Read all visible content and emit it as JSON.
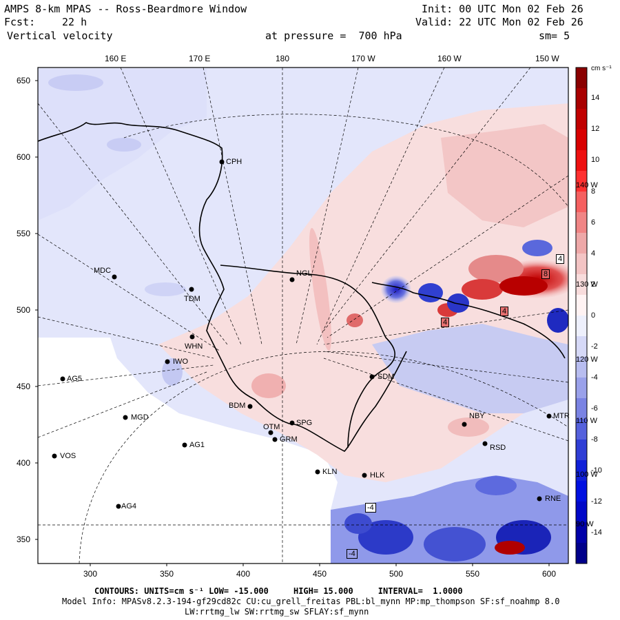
{
  "header": {
    "title": "AMPS 8-km MPAS -- Ross-Beardmore Window",
    "fcst_label": "Fcst:",
    "fcst_value": "22 h",
    "variable": "Vertical velocity",
    "init": "Init: 00 UTC Mon 02 Feb 26",
    "valid": "Valid: 22 UTC Mon 02 Feb 26",
    "pressure": "at pressure =  700 hPa",
    "smooth": "sm= 5"
  },
  "axes": {
    "top_ticks": [
      "160 E",
      "170 E",
      "180",
      "170 W",
      "160 W",
      "150 W"
    ],
    "left_ticks": [
      "650",
      "600",
      "550",
      "500",
      "450",
      "400",
      "350"
    ],
    "bottom_ticks": [
      "300",
      "350",
      "400",
      "450",
      "500",
      "550",
      "600"
    ],
    "meridian_labels": [
      "140 W",
      "130 W",
      "120 W",
      "110 W",
      "100 W",
      "90 W"
    ]
  },
  "colorbar": {
    "units": "cm s⁻¹",
    "ticks": [
      "14",
      "12",
      "10",
      "8",
      "6",
      "4",
      "2",
      "0",
      "-2",
      "-4",
      "-6",
      "-8",
      "-10",
      "-12",
      "-14"
    ]
  },
  "stations": [
    {
      "name": "CPH"
    },
    {
      "name": "MDC"
    },
    {
      "name": "NGL"
    },
    {
      "name": "TDM"
    },
    {
      "name": "WHN"
    },
    {
      "name": "IWO"
    },
    {
      "name": "AG5"
    },
    {
      "name": "SDM"
    },
    {
      "name": "MGD"
    },
    {
      "name": "BDM"
    },
    {
      "name": "SPG"
    },
    {
      "name": "OTM"
    },
    {
      "name": "GRM"
    },
    {
      "name": "NBY"
    },
    {
      "name": "MTR"
    },
    {
      "name": "RSD"
    },
    {
      "name": "AG1"
    },
    {
      "name": "VOS"
    },
    {
      "name": "KLN"
    },
    {
      "name": "HLK"
    },
    {
      "name": "RNE"
    },
    {
      "name": "AG4"
    }
  ],
  "contour_labels": [
    "4",
    "8",
    "4",
    "4",
    "-4",
    "-4"
  ],
  "footer": {
    "line1": "CONTOURS: UNITS=cm s⁻¹ LOW= -15.000     HIGH= 15.000     INTERVAL=  1.0000",
    "line2": "Model Info: MPASv8.2.3-194-gf29cd82c CU:cu_grell_freitas PBL:bl_mynn MP:mp_thompson SF:sf_noahmp 8.0",
    "line3": "LW:rrtmg_lw SW:rrtmg_sw SFLAY:sf_mynn"
  },
  "colors": {
    "positive_strong": "#b00000",
    "positive_weak": "#f5c8c8",
    "neutral": "#ffffff",
    "negative_weak": "#c9cdf3",
    "negative_strong": "#0000b5"
  }
}
